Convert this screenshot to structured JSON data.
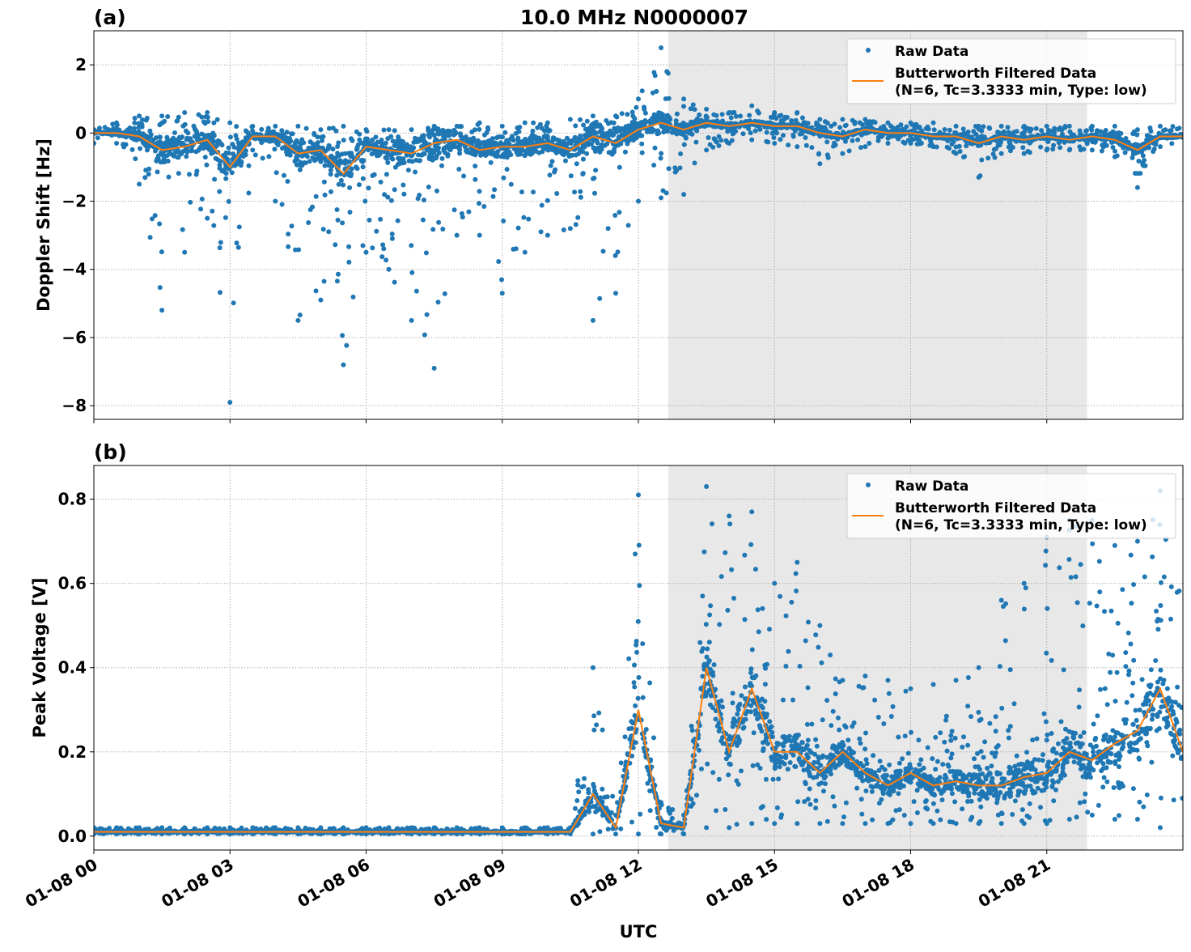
{
  "title": "10.0 MHz N0000007",
  "xlabel": "UTC",
  "legend": {
    "raw": "Raw Data",
    "filtered_line1": "Butterworth Filtered Data",
    "filtered_line2": "(N=6, Tc=3.3333 min, Type: low)",
    "placement": "top-right"
  },
  "colors": {
    "raw": "#1f77b4",
    "filtered": "#ff7f0e",
    "shade": "#e8e8e8",
    "grid": "#b0b0b0"
  },
  "chart_data": [
    {
      "panel_label": "(a)",
      "type": "scatter",
      "ylabel": "Doppler Shift [Hz]",
      "xlim_hours": [
        0,
        24
      ],
      "ylim": [
        -8.4,
        3.0
      ],
      "yticks": [
        -8,
        -6,
        -4,
        -2,
        0,
        2
      ],
      "ytick_labels": [
        "−8",
        "−6",
        "−4",
        "−2",
        "0",
        "2"
      ],
      "grid": true,
      "shaded_interval_hours": [
        12.66,
        21.89
      ],
      "x_hours": [
        0,
        0.5,
        1,
        1.5,
        2,
        2.5,
        3,
        3.5,
        4,
        4.5,
        5,
        5.5,
        6,
        6.5,
        7,
        7.5,
        8,
        8.5,
        9,
        9.5,
        10,
        10.5,
        11,
        11.5,
        12,
        12.5,
        13,
        13.5,
        14,
        14.5,
        15,
        15.5,
        16,
        16.5,
        17,
        17.5,
        18,
        18.5,
        19,
        19.5,
        20,
        20.5,
        21,
        21.5,
        22,
        22.5,
        23,
        23.5,
        24
      ],
      "raw_min": [
        -0.3,
        -0.3,
        -1.5,
        -5.2,
        -3.5,
        -2.5,
        -7.9,
        -0.5,
        -2,
        -5.5,
        -4.9,
        -6.8,
        -3.5,
        -4,
        -5.5,
        -6.9,
        -3,
        -3,
        -4.7,
        -3.5,
        -3,
        -2.8,
        -5.5,
        -4.7,
        -2,
        -1.9,
        -1.8,
        -0.5,
        -0.3,
        -0.2,
        -0.3,
        -0.4,
        -0.9,
        -0.6,
        -0.4,
        -0.3,
        -0.3,
        -0.4,
        -0.6,
        -1.3,
        -0.6,
        -0.6,
        -0.5,
        -0.5,
        -0.5,
        -0.7,
        -1.6,
        -0.4,
        -0.3
      ],
      "raw_max": [
        0.1,
        0.3,
        0.5,
        0.5,
        0.6,
        0.6,
        0.3,
        0.2,
        0.2,
        0.2,
        0.1,
        0.2,
        0.1,
        0.1,
        0.1,
        0.2,
        0.2,
        0.3,
        0.2,
        0.3,
        0.3,
        0.4,
        0.5,
        0.5,
        1.0,
        2.5,
        1.0,
        0.7,
        0.6,
        0.8,
        0.6,
        0.6,
        0.4,
        0.4,
        0.4,
        0.3,
        0.3,
        0.3,
        0.2,
        0.2,
        0.2,
        0.2,
        0.2,
        0.2,
        0.2,
        0.2,
        0.1,
        0.2,
        0.2
      ],
      "filtered": [
        0,
        0,
        -0.1,
        -0.5,
        -0.4,
        -0.2,
        -1.0,
        -0.1,
        -0.1,
        -0.6,
        -0.5,
        -1.2,
        -0.4,
        -0.5,
        -0.6,
        -0.3,
        -0.2,
        -0.5,
        -0.4,
        -0.4,
        -0.3,
        -0.5,
        -0.1,
        -0.3,
        0.1,
        0.3,
        0.1,
        0.3,
        0.2,
        0.3,
        0.2,
        0.2,
        0.0,
        -0.1,
        0.1,
        0.0,
        0.0,
        -0.1,
        -0.1,
        -0.3,
        -0.1,
        -0.2,
        -0.1,
        -0.2,
        -0.1,
        -0.2,
        -0.5,
        -0.1,
        -0.1
      ]
    },
    {
      "panel_label": "(b)",
      "type": "scatter",
      "ylabel": "Peak Voltage [V]",
      "xlim_hours": [
        0,
        24
      ],
      "ylim": [
        -0.033,
        0.88
      ],
      "yticks": [
        0.0,
        0.2,
        0.4,
        0.6,
        0.8
      ],
      "ytick_labels": [
        "0.0",
        "0.2",
        "0.4",
        "0.6",
        "0.8"
      ],
      "grid": true,
      "shaded_interval_hours": [
        12.66,
        21.89
      ],
      "x_hours": [
        0,
        0.5,
        1,
        1.5,
        2,
        2.5,
        3,
        3.5,
        4,
        4.5,
        5,
        5.5,
        6,
        6.5,
        7,
        7.5,
        8,
        8.5,
        9,
        9.5,
        10,
        10.5,
        11,
        11.5,
        12,
        12.5,
        13,
        13.5,
        14,
        14.5,
        15,
        15.5,
        16,
        16.5,
        17,
        17.5,
        18,
        18.5,
        19,
        19.5,
        20,
        20.5,
        21,
        21.5,
        22,
        22.5,
        23,
        23.5,
        24
      ],
      "raw_min": [
        0.005,
        0.005,
        0.005,
        0.005,
        0.005,
        0.005,
        0.005,
        0.005,
        0.005,
        0.005,
        0.005,
        0.005,
        0.005,
        0.005,
        0.005,
        0.005,
        0.005,
        0.005,
        0.005,
        0.005,
        0.005,
        0.005,
        0.005,
        0.005,
        0.005,
        0.005,
        0.005,
        0.02,
        0.02,
        0.03,
        0.03,
        0.03,
        0.03,
        0.03,
        0.03,
        0.03,
        0.03,
        0.03,
        0.03,
        0.03,
        0.03,
        0.03,
        0.03,
        0.04,
        0.05,
        0.04,
        0.04,
        0.02,
        0.05
      ],
      "raw_max": [
        0.02,
        0.02,
        0.02,
        0.02,
        0.02,
        0.02,
        0.02,
        0.02,
        0.02,
        0.02,
        0.02,
        0.02,
        0.02,
        0.02,
        0.02,
        0.02,
        0.02,
        0.02,
        0.02,
        0.02,
        0.02,
        0.02,
        0.4,
        0.05,
        0.81,
        0.08,
        0.05,
        0.83,
        0.76,
        0.77,
        0.6,
        0.65,
        0.5,
        0.37,
        0.38,
        0.37,
        0.35,
        0.36,
        0.37,
        0.4,
        0.56,
        0.6,
        0.71,
        0.75,
        0.75,
        0.69,
        0.7,
        0.82,
        0.6
      ],
      "filtered": [
        0.01,
        0.01,
        0.01,
        0.01,
        0.01,
        0.01,
        0.01,
        0.01,
        0.01,
        0.01,
        0.01,
        0.01,
        0.01,
        0.01,
        0.01,
        0.01,
        0.01,
        0.01,
        0.01,
        0.01,
        0.01,
        0.01,
        0.1,
        0.02,
        0.3,
        0.03,
        0.02,
        0.4,
        0.2,
        0.35,
        0.2,
        0.2,
        0.15,
        0.2,
        0.15,
        0.12,
        0.15,
        0.12,
        0.13,
        0.12,
        0.12,
        0.14,
        0.15,
        0.2,
        0.18,
        0.22,
        0.25,
        0.35,
        0.2
      ]
    }
  ],
  "xticks_hours": [
    0,
    3,
    6,
    9,
    12,
    15,
    18,
    21
  ],
  "xtick_labels": [
    "01-08 00",
    "01-08 03",
    "01-08 06",
    "01-08 09",
    "01-08 12",
    "01-08 15",
    "01-08 18",
    "01-08 21"
  ]
}
